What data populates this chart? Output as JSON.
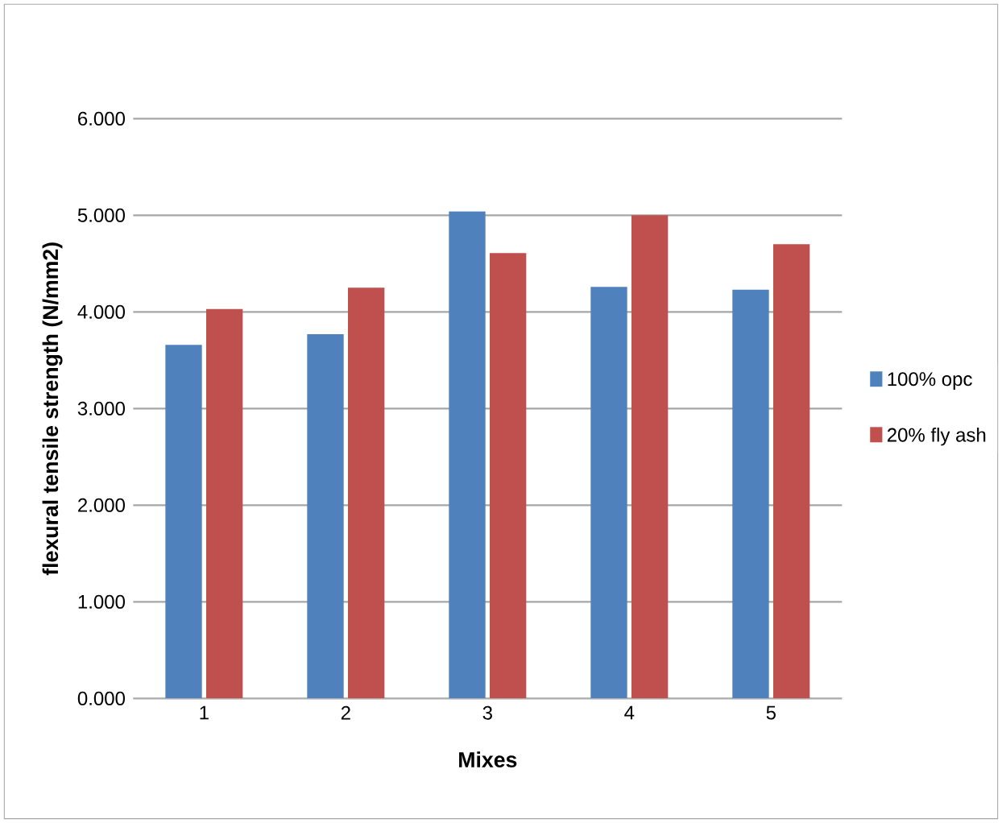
{
  "chart_data": {
    "type": "bar",
    "xlabel": "Mixes",
    "ylabel": "flexural tensile strength (N/mm2)",
    "categories": [
      "1",
      "2",
      "3",
      "4",
      "5"
    ],
    "series": [
      {
        "name": "100% opc",
        "color": "#4f81bd",
        "values": [
          3.66,
          3.77,
          5.04,
          4.26,
          4.23
        ]
      },
      {
        "name": "20% fly ash",
        "color": "#c0504d",
        "values": [
          4.03,
          4.25,
          4.61,
          5.0,
          4.7
        ]
      }
    ],
    "ylim": [
      0,
      6
    ],
    "yticks": [
      {
        "value": 0,
        "label": "0.000"
      },
      {
        "value": 1,
        "label": "1.000"
      },
      {
        "value": 2,
        "label": "2.000"
      },
      {
        "value": 3,
        "label": "3.000"
      },
      {
        "value": 4,
        "label": "4.000"
      },
      {
        "value": 5,
        "label": "5.000"
      },
      {
        "value": 6,
        "label": "6.000"
      }
    ],
    "grid": "y",
    "legend": "right"
  }
}
